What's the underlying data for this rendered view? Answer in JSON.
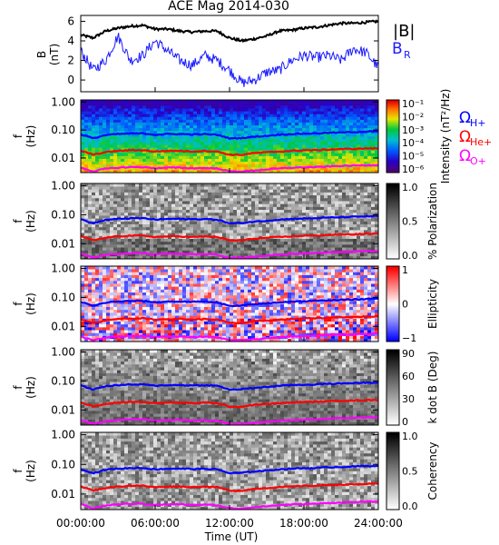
{
  "title": "ACE Mag 2014-030",
  "x_axis": {
    "ticks": [
      "00:00:00",
      "06:00:00",
      "12:00:00",
      "18:00:00",
      "24:00:00"
    ],
    "tick_hours": [
      0,
      6,
      12,
      18,
      24
    ],
    "label": "Time (UT)"
  },
  "top_panel": {
    "ylabel_line1": "B",
    "ylabel_line2": "(nT)",
    "yticks": [
      "6",
      "4",
      "2",
      "0"
    ],
    "ytick_values": [
      6,
      4,
      2,
      0
    ],
    "ylim": [
      -1.2,
      6.6
    ],
    "legend_total": "|B|",
    "legend_radial": "B",
    "legend_radial_sub": "R",
    "color_total": "#000000",
    "color_radial": "#1a1aff"
  },
  "spectro_ylabel_line1": "f",
  "spectro_ylabel_line2": "(Hz)",
  "spectro_yticks": [
    "1.00",
    "0.10",
    "0.01"
  ],
  "spectro_ytick_values": [
    1.0,
    0.1,
    0.01
  ],
  "spectro_ylim_hz": [
    0.003,
    1.2
  ],
  "gyro_legend": [
    {
      "symbol": "Ω",
      "sub": "H+",
      "color": "#0000ff"
    },
    {
      "symbol": "Ω",
      "sub": "He+",
      "color": "#ff0000"
    },
    {
      "symbol": "Ω",
      "sub": "O+",
      "color": "#ff00ff"
    }
  ],
  "panels": [
    {
      "id": "intensity",
      "palette": "rainbow",
      "bar_ticks": [
        "10⁻¹",
        "10⁻²",
        "10⁻³",
        "10⁻⁴",
        "10⁻⁵",
        "10⁻⁶"
      ],
      "bar_label": "Intensity (nT²/Hz)"
    },
    {
      "id": "polarization",
      "palette": "gray",
      "bar_ticks": [
        "1.0",
        "0.5",
        "0.0"
      ],
      "bar_label": "% Polarization"
    },
    {
      "id": "ellipticity",
      "palette": "bwr",
      "bar_ticks": [
        "1",
        "0",
        "−1"
      ],
      "bar_label": "Ellipticity"
    },
    {
      "id": "kdotb",
      "palette": "gray",
      "bar_ticks": [
        "90",
        "60",
        "30",
        "0"
      ],
      "bar_label": "k dot B (Deg)"
    },
    {
      "id": "coherency",
      "palette": "gray",
      "bar_ticks": [
        "1.0",
        "0.5",
        "0.0"
      ],
      "bar_label": "Coherency"
    }
  ],
  "chart_data": [
    {
      "type": "line",
      "x_hours": [
        0,
        1,
        2,
        3,
        4,
        5,
        6,
        7,
        8,
        9,
        10,
        11,
        12,
        13,
        14,
        15,
        16,
        17,
        18,
        19,
        20,
        21,
        22,
        23,
        24
      ],
      "series": [
        {
          "name": "|B|",
          "values": [
            4.6,
            4.3,
            5.0,
            5.3,
            5.5,
            5.6,
            5.2,
            5.2,
            5.0,
            4.9,
            5.0,
            5.0,
            4.3,
            4.0,
            4.2,
            4.5,
            5.0,
            5.1,
            5.3,
            5.4,
            5.6,
            5.8,
            5.8,
            5.9,
            6.0
          ]
        },
        {
          "name": "BR",
          "values": [
            3.0,
            1.0,
            2.0,
            4.5,
            2.0,
            2.5,
            4.0,
            3.0,
            2.0,
            1.5,
            2.5,
            2.0,
            1.0,
            -0.3,
            0.0,
            0.8,
            1.0,
            2.0,
            2.5,
            2.3,
            2.5,
            2.0,
            3.2,
            2.8,
            1.3
          ]
        }
      ],
      "ylim": [
        -1.2,
        6.6
      ]
    },
    {
      "type": "line",
      "x_hours": [
        0,
        1,
        2,
        3,
        4,
        5,
        6,
        7,
        8,
        9,
        10,
        11,
        12,
        13,
        14,
        15,
        16,
        17,
        18,
        19,
        20,
        21,
        22,
        23,
        24
      ],
      "series": [
        {
          "name": "ΩH+",
          "values": [
            0.07,
            0.05,
            0.066,
            0.072,
            0.075,
            0.076,
            0.068,
            0.072,
            0.072,
            0.07,
            0.071,
            0.068,
            0.05,
            0.052,
            0.058,
            0.062,
            0.068,
            0.072,
            0.074,
            0.076,
            0.08,
            0.082,
            0.085,
            0.088,
            0.09
          ]
        },
        {
          "name": "ΩHe+",
          "values": [
            0.018,
            0.013,
            0.016,
            0.018,
            0.019,
            0.019,
            0.017,
            0.018,
            0.018,
            0.017,
            0.018,
            0.017,
            0.013,
            0.013,
            0.015,
            0.016,
            0.017,
            0.018,
            0.019,
            0.019,
            0.02,
            0.021,
            0.021,
            0.022,
            0.022
          ]
        },
        {
          "name": "ΩO+",
          "values": [
            0.0045,
            0.0033,
            0.0041,
            0.0045,
            0.0047,
            0.0047,
            0.0043,
            0.0045,
            0.0045,
            0.0043,
            0.0044,
            0.0042,
            0.0033,
            0.0033,
            0.0036,
            0.0039,
            0.0042,
            0.0045,
            0.0046,
            0.0047,
            0.005,
            0.0052,
            0.0053,
            0.0055,
            0.0056
          ]
        }
      ],
      "ylim": [
        0.003,
        1.2
      ],
      "log_y": true
    }
  ]
}
